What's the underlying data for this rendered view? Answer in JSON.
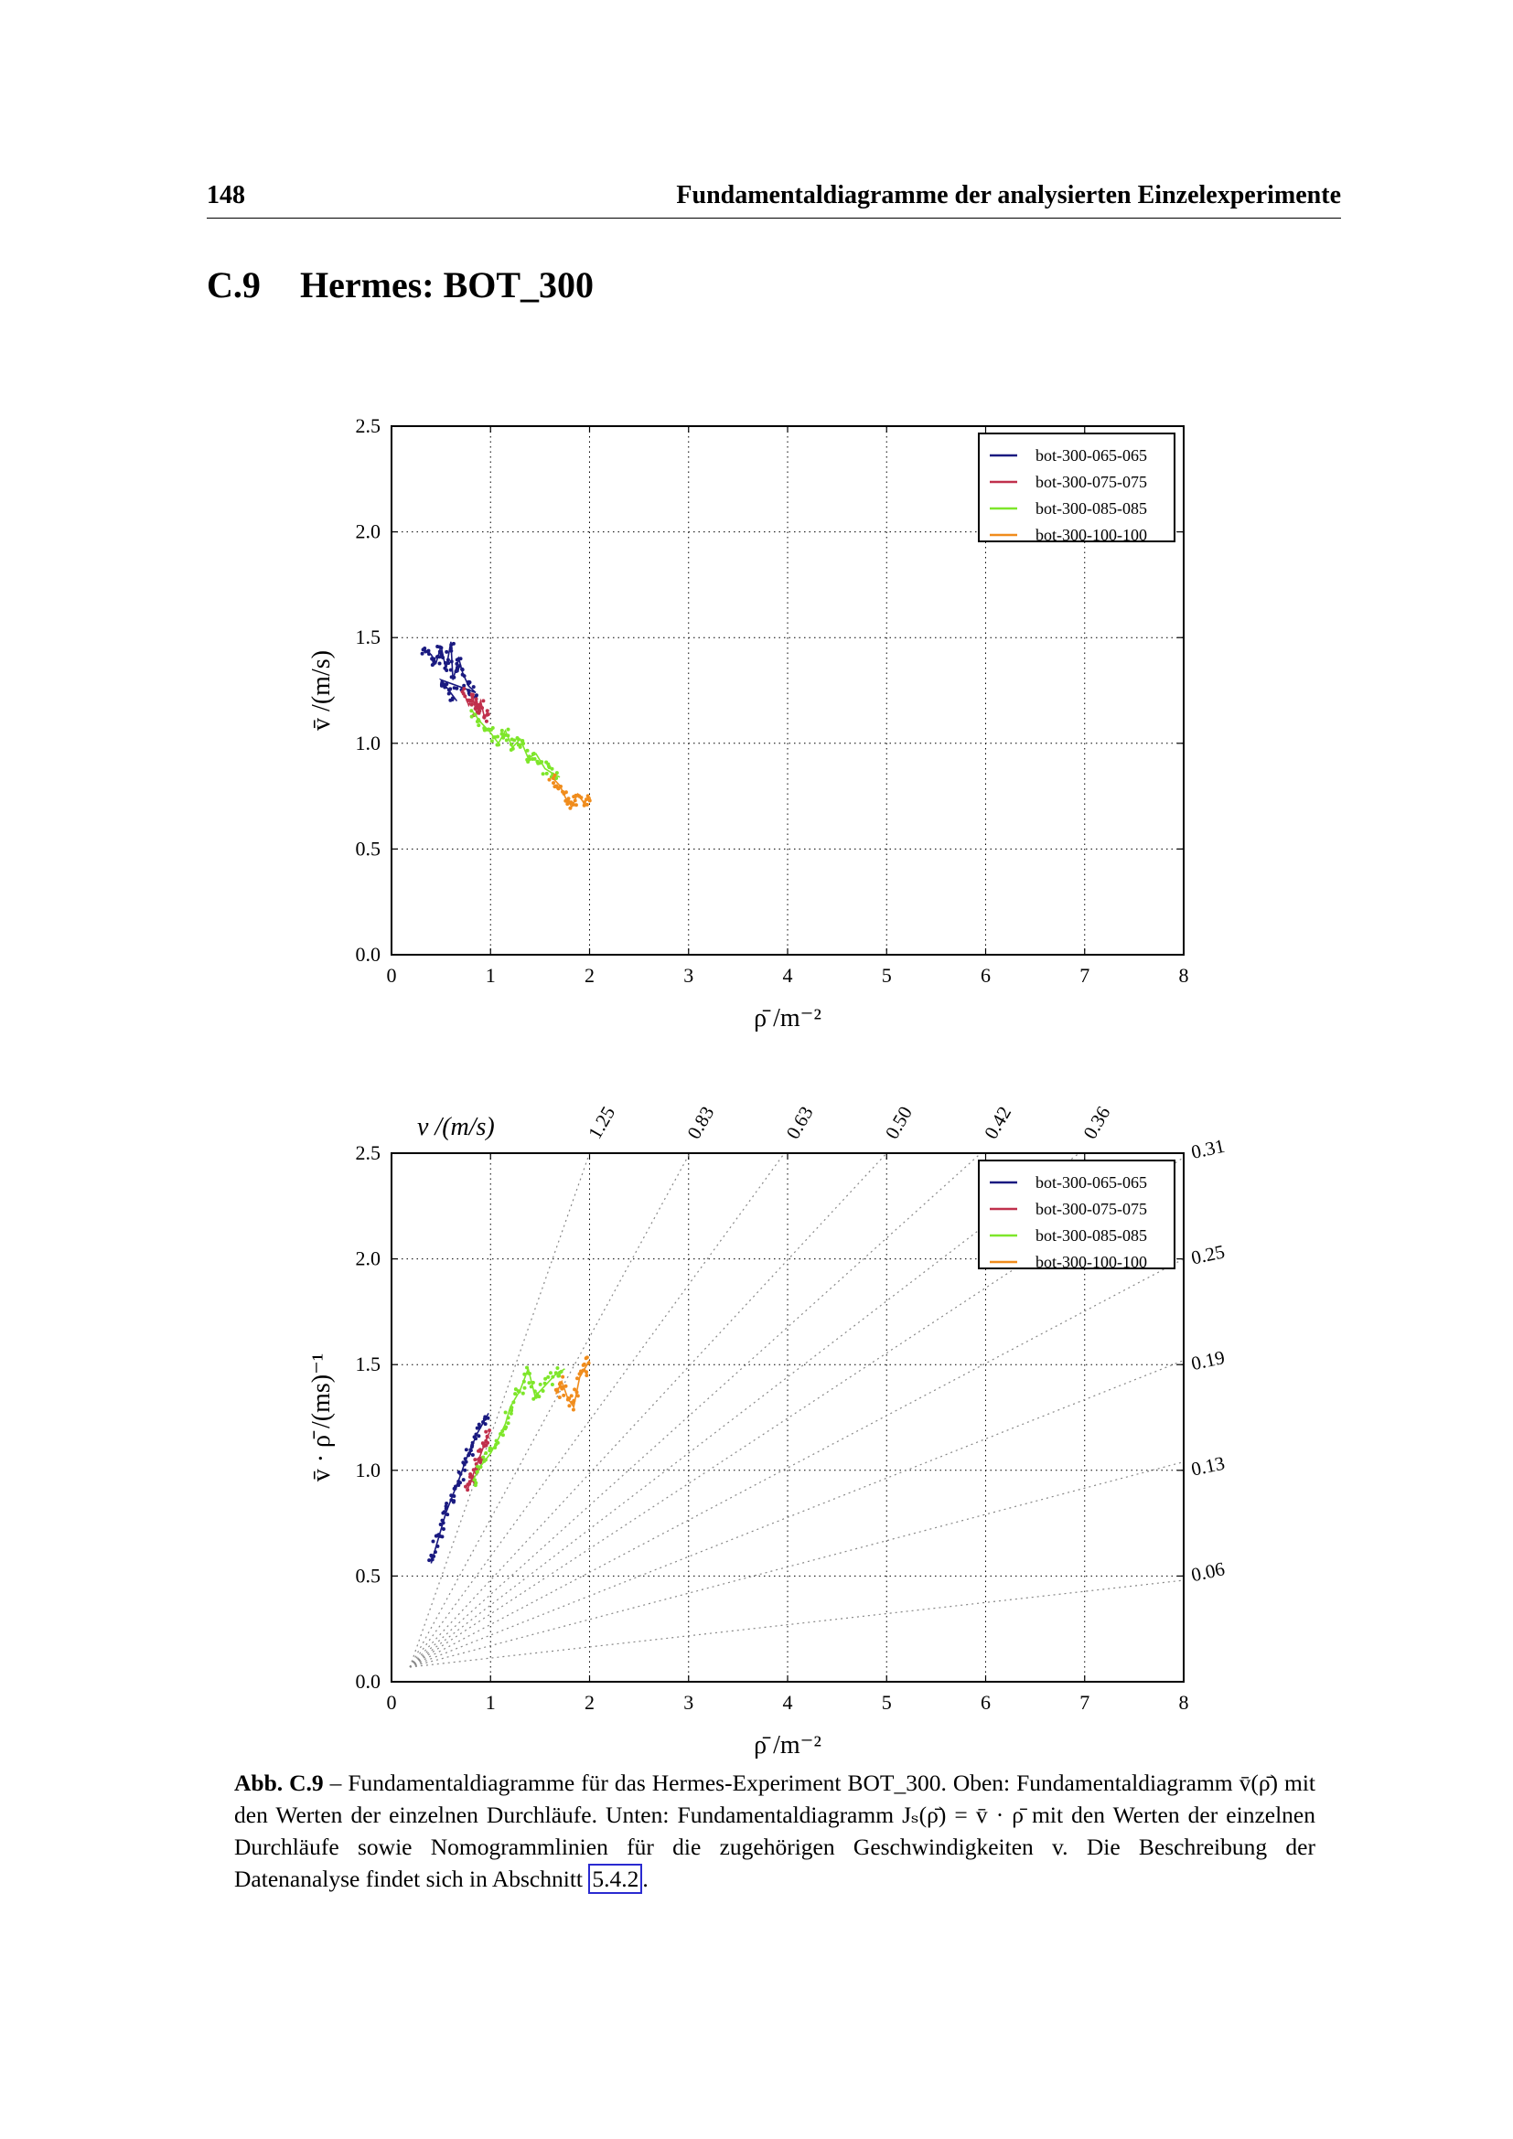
{
  "header": {
    "page_number": "148",
    "running_title": "Fundamentaldiagramme der analysierten Einzelexperimente"
  },
  "section": {
    "number": "C.9",
    "title": "Hermes: BOT_300"
  },
  "legend": [
    "bot-300-065-065",
    "bot-300-075-075",
    "bot-300-085-085",
    "bot-300-100-100"
  ],
  "series_colors": {
    "bot-300-065-065": "#1a1a80",
    "bot-300-075-075": "#c0304c",
    "bot-300-085-085": "#7ee62a",
    "bot-300-100-100": "#f08c1c"
  },
  "chart_data": [
    {
      "type": "scatter",
      "title": "",
      "xlabel": "ρ̄  /m⁻²",
      "ylabel": "v̄  /(m/s)",
      "xlim": [
        0,
        8
      ],
      "ylim": [
        0,
        2.5
      ],
      "x_ticks": [
        "0",
        "1",
        "2",
        "3",
        "4",
        "5",
        "6",
        "7",
        "8"
      ],
      "y_ticks": [
        "0.0",
        "0.5",
        "1.0",
        "1.5",
        "2.0",
        "2.5"
      ],
      "grid": true,
      "legend_position": "top-right",
      "series": [
        {
          "name": "bot-300-065-065",
          "x_range": [
            0.3,
            0.9
          ],
          "y_range": [
            1.2,
            1.5
          ],
          "points": [
            [
              0.32,
              1.44
            ],
            [
              0.4,
              1.42
            ],
            [
              0.45,
              1.38
            ],
            [
              0.5,
              1.46
            ],
            [
              0.55,
              1.35
            ],
            [
              0.6,
              1.48
            ],
            [
              0.62,
              1.3
            ],
            [
              0.68,
              1.4
            ],
            [
              0.72,
              1.33
            ],
            [
              0.78,
              1.27
            ],
            [
              0.85,
              1.24
            ],
            [
              0.5,
              1.3
            ],
            [
              0.58,
              1.25
            ],
            [
              0.66,
              1.2
            ]
          ]
        },
        {
          "name": "bot-300-075-075",
          "x_range": [
            0.7,
            1.0
          ],
          "y_range": [
            1.1,
            1.3
          ],
          "points": [
            [
              0.72,
              1.25
            ],
            [
              0.78,
              1.18
            ],
            [
              0.82,
              1.22
            ],
            [
              0.86,
              1.14
            ],
            [
              0.9,
              1.2
            ],
            [
              0.94,
              1.12
            ],
            [
              0.98,
              1.16
            ]
          ]
        },
        {
          "name": "bot-300-085-085",
          "x_range": [
            0.8,
            1.7
          ],
          "y_range": [
            0.82,
            1.2
          ],
          "points": [
            [
              0.82,
              1.15
            ],
            [
              0.9,
              1.1
            ],
            [
              1.0,
              1.05
            ],
            [
              1.08,
              1.0
            ],
            [
              1.15,
              1.06
            ],
            [
              1.22,
              0.98
            ],
            [
              1.3,
              1.02
            ],
            [
              1.38,
              0.93
            ],
            [
              1.46,
              0.95
            ],
            [
              1.55,
              0.88
            ],
            [
              1.62,
              0.86
            ],
            [
              1.7,
              0.84
            ]
          ]
        },
        {
          "name": "bot-300-100-100",
          "x_range": [
            1.6,
            2.0
          ],
          "y_range": [
            0.68,
            0.85
          ],
          "points": [
            [
              1.62,
              0.84
            ],
            [
              1.7,
              0.8
            ],
            [
              1.76,
              0.74
            ],
            [
              1.82,
              0.7
            ],
            [
              1.88,
              0.76
            ],
            [
              1.94,
              0.72
            ],
            [
              2.0,
              0.74
            ]
          ]
        }
      ]
    },
    {
      "type": "scatter",
      "title": "",
      "xlabel": "ρ̄  /m⁻²",
      "ylabel": "v̄ · ρ̄  /(ms)⁻¹",
      "xlim": [
        0,
        8
      ],
      "ylim": [
        0,
        2.5
      ],
      "x_ticks": [
        "0",
        "1",
        "2",
        "3",
        "4",
        "5",
        "6",
        "7",
        "8"
      ],
      "y_ticks": [
        "0.0",
        "0.5",
        "1.0",
        "1.5",
        "2.0",
        "2.5"
      ],
      "grid": true,
      "legend_position": "top-right",
      "nomogram_title": "v  /(m/s)",
      "nomogram_labels_top": [
        "1.25",
        "0.83",
        "0.63",
        "0.50",
        "0.42",
        "0.36"
      ],
      "nomogram_labels_right": [
        "0.31",
        "0.25",
        "0.19",
        "0.13",
        "0.06"
      ],
      "nomogram_slopes": [
        1.25,
        0.83,
        0.63,
        0.5,
        0.42,
        0.36,
        0.31,
        0.25,
        0.19,
        0.13,
        0.06
      ],
      "series": [
        {
          "name": "bot-300-065-065",
          "x_range": [
            0.4,
            1.0
          ],
          "y_range": [
            0.55,
            1.28
          ],
          "points": [
            [
              0.4,
              0.56
            ],
            [
              0.45,
              0.64
            ],
            [
              0.5,
              0.72
            ],
            [
              0.55,
              0.8
            ],
            [
              0.6,
              0.86
            ],
            [
              0.65,
              0.92
            ],
            [
              0.7,
              0.98
            ],
            [
              0.75,
              1.05
            ],
            [
              0.8,
              1.1
            ],
            [
              0.86,
              1.17
            ],
            [
              0.92,
              1.22
            ],
            [
              0.98,
              1.27
            ]
          ]
        },
        {
          "name": "bot-300-075-075",
          "x_range": [
            0.75,
            1.0
          ],
          "y_range": [
            0.88,
            1.2
          ],
          "points": [
            [
              0.76,
              0.9
            ],
            [
              0.8,
              0.95
            ],
            [
              0.84,
              1.0
            ],
            [
              0.88,
              1.05
            ],
            [
              0.92,
              1.1
            ],
            [
              0.96,
              1.15
            ],
            [
              0.99,
              1.18
            ]
          ]
        },
        {
          "name": "bot-300-085-085",
          "x_range": [
            0.8,
            1.8
          ],
          "y_range": [
            0.9,
            1.5
          ],
          "points": [
            [
              0.82,
              0.95
            ],
            [
              0.9,
              1.02
            ],
            [
              1.0,
              1.08
            ],
            [
              1.08,
              1.15
            ],
            [
              1.15,
              1.22
            ],
            [
              1.2,
              1.3
            ],
            [
              1.3,
              1.38
            ],
            [
              1.38,
              1.48
            ],
            [
              1.45,
              1.35
            ],
            [
              1.55,
              1.4
            ],
            [
              1.65,
              1.45
            ],
            [
              1.75,
              1.48
            ]
          ]
        },
        {
          "name": "bot-300-100-100",
          "x_range": [
            1.65,
            2.0
          ],
          "y_range": [
            1.2,
            1.52
          ],
          "points": [
            [
              1.66,
              1.36
            ],
            [
              1.72,
              1.42
            ],
            [
              1.78,
              1.34
            ],
            [
              1.84,
              1.3
            ],
            [
              1.9,
              1.44
            ],
            [
              1.95,
              1.48
            ],
            [
              2.0,
              1.52
            ]
          ]
        }
      ]
    }
  ],
  "caption": {
    "label": "Abb. C.9",
    "dash": " – ",
    "text1": "Fundamentaldiagramme für das Hermes-Experiment BOT_300. Oben: Fundamentaldiagramm v̄(ρ̄) mit den Werten der einzelnen Durchläufe. Unten: Fundamentaldiagramm Jₛ(ρ̄) = v̄ · ρ̄ mit den Werten der einzelnen Durchläufe sowie Nomogrammlinien für die zugehörigen Geschwindigkeiten v. Die Beschreibung der Datenanalyse findet sich in Abschnitt ",
    "ref": "5.4.2",
    "text2": "."
  }
}
